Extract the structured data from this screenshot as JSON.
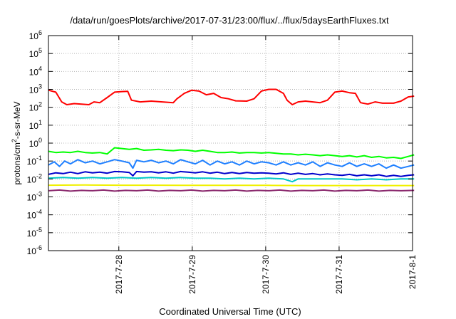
{
  "chart_data": {
    "type": "line",
    "title": "/data/run/goesPlots/archive/2017-07-31/23:00/flux/../flux/5daysEarthFluxes.txt",
    "xlabel": "Coordinated Universal Time (UTC)",
    "ylabel": {
      "base": "protons/cm",
      "sup": "2",
      "rest": "-s-sr-MeV"
    },
    "yscale": "log",
    "ylim": [
      1e-06,
      1000000.0
    ],
    "y_ticks": [
      {
        "exp": -6
      },
      {
        "exp": -5
      },
      {
        "exp": -4
      },
      {
        "exp": -3
      },
      {
        "exp": -2
      },
      {
        "exp": -1
      },
      {
        "exp": 0
      },
      {
        "exp": 1
      },
      {
        "exp": 2
      },
      {
        "exp": 3
      },
      {
        "exp": 4
      },
      {
        "exp": 5
      },
      {
        "exp": 6
      }
    ],
    "y_tick_base": "10",
    "xlim": [
      "2017-07-27 01:00",
      "2017-08-01 00:00"
    ],
    "x_ticks": [
      {
        "label": "2017-7-28",
        "day": 1
      },
      {
        "label": "2017-7-29",
        "day": 2
      },
      {
        "label": "2017-7-30",
        "day": 3
      },
      {
        "label": "2017-7-31",
        "day": 4
      },
      {
        "label": "2017-8-1",
        "day": 5
      }
    ],
    "grid": true,
    "series": [
      {
        "color": "#ff0000",
        "points": [
          [
            0.0,
            900
          ],
          [
            0.1,
            700
          ],
          [
            0.18,
            200
          ],
          [
            0.25,
            140
          ],
          [
            0.35,
            160
          ],
          [
            0.45,
            150
          ],
          [
            0.55,
            140
          ],
          [
            0.62,
            200
          ],
          [
            0.7,
            180
          ],
          [
            0.8,
            350
          ],
          [
            0.9,
            700
          ],
          [
            1.0,
            750
          ],
          [
            1.08,
            780
          ],
          [
            1.13,
            250
          ],
          [
            1.25,
            200
          ],
          [
            1.4,
            220
          ],
          [
            1.55,
            200
          ],
          [
            1.7,
            180
          ],
          [
            1.75,
            300
          ],
          [
            1.85,
            600
          ],
          [
            1.95,
            900
          ],
          [
            2.05,
            800
          ],
          [
            2.15,
            500
          ],
          [
            2.25,
            600
          ],
          [
            2.35,
            350
          ],
          [
            2.45,
            300
          ],
          [
            2.55,
            230
          ],
          [
            2.7,
            220
          ],
          [
            2.8,
            300
          ],
          [
            2.9,
            800
          ],
          [
            3.0,
            1000
          ],
          [
            3.1,
            1000
          ],
          [
            3.2,
            600
          ],
          [
            3.25,
            250
          ],
          [
            3.32,
            140
          ],
          [
            3.4,
            200
          ],
          [
            3.5,
            220
          ],
          [
            3.6,
            200
          ],
          [
            3.7,
            180
          ],
          [
            3.8,
            250
          ],
          [
            3.9,
            700
          ],
          [
            4.0,
            800
          ],
          [
            4.1,
            650
          ],
          [
            4.18,
            600
          ],
          [
            4.25,
            180
          ],
          [
            4.35,
            150
          ],
          [
            4.45,
            200
          ],
          [
            4.55,
            170
          ],
          [
            4.7,
            170
          ],
          [
            4.8,
            220
          ],
          [
            4.9,
            380
          ],
          [
            4.98,
            420
          ]
        ]
      },
      {
        "color": "#00ff00",
        "points": [
          [
            0.0,
            0.35
          ],
          [
            0.1,
            0.3
          ],
          [
            0.2,
            0.32
          ],
          [
            0.3,
            0.3
          ],
          [
            0.4,
            0.35
          ],
          [
            0.5,
            0.3
          ],
          [
            0.6,
            0.28
          ],
          [
            0.7,
            0.3
          ],
          [
            0.8,
            0.25
          ],
          [
            0.9,
            0.55
          ],
          [
            1.0,
            0.5
          ],
          [
            1.1,
            0.45
          ],
          [
            1.2,
            0.5
          ],
          [
            1.3,
            0.4
          ],
          [
            1.4,
            0.42
          ],
          [
            1.5,
            0.45
          ],
          [
            1.6,
            0.4
          ],
          [
            1.7,
            0.38
          ],
          [
            1.8,
            0.42
          ],
          [
            1.9,
            0.4
          ],
          [
            2.0,
            0.35
          ],
          [
            2.1,
            0.4
          ],
          [
            2.2,
            0.35
          ],
          [
            2.3,
            0.3
          ],
          [
            2.4,
            0.3
          ],
          [
            2.5,
            0.32
          ],
          [
            2.6,
            0.28
          ],
          [
            2.7,
            0.3
          ],
          [
            2.8,
            0.3
          ],
          [
            2.9,
            0.28
          ],
          [
            3.0,
            0.3
          ],
          [
            3.1,
            0.27
          ],
          [
            3.2,
            0.25
          ],
          [
            3.3,
            0.25
          ],
          [
            3.4,
            0.22
          ],
          [
            3.5,
            0.24
          ],
          [
            3.6,
            0.22
          ],
          [
            3.7,
            0.2
          ],
          [
            3.8,
            0.22
          ],
          [
            3.9,
            0.2
          ],
          [
            4.0,
            0.18
          ],
          [
            4.1,
            0.2
          ],
          [
            4.2,
            0.17
          ],
          [
            4.3,
            0.2
          ],
          [
            4.4,
            0.16
          ],
          [
            4.5,
            0.18
          ],
          [
            4.6,
            0.15
          ],
          [
            4.7,
            0.16
          ],
          [
            4.8,
            0.14
          ],
          [
            4.9,
            0.18
          ],
          [
            4.98,
            0.22
          ]
        ]
      },
      {
        "color": "#1e7fff",
        "points": [
          [
            0.0,
            0.06
          ],
          [
            0.08,
            0.09
          ],
          [
            0.15,
            0.05
          ],
          [
            0.22,
            0.1
          ],
          [
            0.3,
            0.07
          ],
          [
            0.4,
            0.12
          ],
          [
            0.5,
            0.08
          ],
          [
            0.6,
            0.1
          ],
          [
            0.7,
            0.07
          ],
          [
            0.8,
            0.09
          ],
          [
            0.9,
            0.12
          ],
          [
            1.0,
            0.1
          ],
          [
            1.1,
            0.08
          ],
          [
            1.15,
            0.04
          ],
          [
            1.2,
            0.11
          ],
          [
            1.3,
            0.09
          ],
          [
            1.4,
            0.11
          ],
          [
            1.5,
            0.08
          ],
          [
            1.6,
            0.1
          ],
          [
            1.7,
            0.07
          ],
          [
            1.8,
            0.12
          ],
          [
            1.9,
            0.09
          ],
          [
            2.0,
            0.07
          ],
          [
            2.1,
            0.11
          ],
          [
            2.2,
            0.06
          ],
          [
            2.3,
            0.1
          ],
          [
            2.4,
            0.07
          ],
          [
            2.5,
            0.09
          ],
          [
            2.6,
            0.06
          ],
          [
            2.7,
            0.1
          ],
          [
            2.8,
            0.07
          ],
          [
            2.9,
            0.09
          ],
          [
            3.0,
            0.08
          ],
          [
            3.1,
            0.06
          ],
          [
            3.2,
            0.09
          ],
          [
            3.3,
            0.06
          ],
          [
            3.4,
            0.08
          ],
          [
            3.5,
            0.06
          ],
          [
            3.6,
            0.09
          ],
          [
            3.7,
            0.05
          ],
          [
            3.8,
            0.08
          ],
          [
            3.9,
            0.06
          ],
          [
            4.0,
            0.05
          ],
          [
            4.1,
            0.08
          ],
          [
            4.2,
            0.05
          ],
          [
            4.3,
            0.07
          ],
          [
            4.4,
            0.05
          ],
          [
            4.5,
            0.07
          ],
          [
            4.6,
            0.04
          ],
          [
            4.7,
            0.06
          ],
          [
            4.8,
            0.04
          ],
          [
            4.9,
            0.05
          ],
          [
            4.98,
            0.06
          ]
        ]
      },
      {
        "color": "#0000cc",
        "points": [
          [
            0.0,
            0.018
          ],
          [
            0.1,
            0.022
          ],
          [
            0.2,
            0.02
          ],
          [
            0.3,
            0.024
          ],
          [
            0.4,
            0.02
          ],
          [
            0.5,
            0.025
          ],
          [
            0.6,
            0.022
          ],
          [
            0.7,
            0.024
          ],
          [
            0.8,
            0.021
          ],
          [
            0.9,
            0.026
          ],
          [
            1.0,
            0.025
          ],
          [
            1.1,
            0.023
          ],
          [
            1.15,
            0.015
          ],
          [
            1.2,
            0.026
          ],
          [
            1.3,
            0.024
          ],
          [
            1.4,
            0.025
          ],
          [
            1.5,
            0.022
          ],
          [
            1.6,
            0.025
          ],
          [
            1.7,
            0.021
          ],
          [
            1.8,
            0.026
          ],
          [
            1.9,
            0.024
          ],
          [
            2.0,
            0.022
          ],
          [
            2.1,
            0.025
          ],
          [
            2.2,
            0.021
          ],
          [
            2.3,
            0.024
          ],
          [
            2.4,
            0.02
          ],
          [
            2.5,
            0.023
          ],
          [
            2.6,
            0.02
          ],
          [
            2.7,
            0.023
          ],
          [
            2.8,
            0.021
          ],
          [
            2.9,
            0.022
          ],
          [
            3.0,
            0.021
          ],
          [
            3.1,
            0.019
          ],
          [
            3.2,
            0.022
          ],
          [
            3.3,
            0.018
          ],
          [
            3.4,
            0.021
          ],
          [
            3.5,
            0.018
          ],
          [
            3.6,
            0.02
          ],
          [
            3.7,
            0.017
          ],
          [
            3.8,
            0.019
          ],
          [
            3.9,
            0.017
          ],
          [
            4.0,
            0.016
          ],
          [
            4.1,
            0.018
          ],
          [
            4.2,
            0.015
          ],
          [
            4.3,
            0.017
          ],
          [
            4.4,
            0.015
          ],
          [
            4.5,
            0.017
          ],
          [
            4.6,
            0.014
          ],
          [
            4.7,
            0.016
          ],
          [
            4.8,
            0.014
          ],
          [
            4.9,
            0.016
          ],
          [
            4.98,
            0.017
          ]
        ]
      },
      {
        "color": "#00c8c8",
        "points": [
          [
            0.0,
            0.011
          ],
          [
            0.2,
            0.012
          ],
          [
            0.4,
            0.011
          ],
          [
            0.6,
            0.012
          ],
          [
            0.8,
            0.011
          ],
          [
            1.0,
            0.012
          ],
          [
            1.2,
            0.011
          ],
          [
            1.4,
            0.012
          ],
          [
            1.6,
            0.011
          ],
          [
            1.8,
            0.012
          ],
          [
            2.0,
            0.011
          ],
          [
            2.2,
            0.011
          ],
          [
            2.4,
            0.01
          ],
          [
            2.6,
            0.011
          ],
          [
            2.8,
            0.01
          ],
          [
            3.0,
            0.011
          ],
          [
            3.2,
            0.01
          ],
          [
            3.32,
            0.007
          ],
          [
            3.4,
            0.01
          ],
          [
            3.6,
            0.01
          ],
          [
            3.8,
            0.01
          ],
          [
            4.0,
            0.01
          ],
          [
            4.2,
            0.009
          ],
          [
            4.4,
            0.01
          ],
          [
            4.6,
            0.009
          ],
          [
            4.8,
            0.01
          ],
          [
            4.98,
            0.01
          ]
        ]
      },
      {
        "color": "#f0f000",
        "points": [
          [
            0.0,
            0.0045
          ],
          [
            0.5,
            0.0046
          ],
          [
            1.0,
            0.0045
          ],
          [
            1.5,
            0.0045
          ],
          [
            2.0,
            0.0044
          ],
          [
            2.5,
            0.0044
          ],
          [
            3.0,
            0.0044
          ],
          [
            3.5,
            0.0043
          ],
          [
            4.0,
            0.0043
          ],
          [
            4.5,
            0.0043
          ],
          [
            4.98,
            0.0043
          ]
        ]
      },
      {
        "color": "#8b2a6e",
        "points": [
          [
            0.0,
            0.0022
          ],
          [
            0.15,
            0.0024
          ],
          [
            0.3,
            0.0021
          ],
          [
            0.45,
            0.0023
          ],
          [
            0.6,
            0.0022
          ],
          [
            0.75,
            0.0024
          ],
          [
            0.9,
            0.0021
          ],
          [
            1.05,
            0.0023
          ],
          [
            1.2,
            0.0022
          ],
          [
            1.35,
            0.0024
          ],
          [
            1.5,
            0.0021
          ],
          [
            1.65,
            0.0023
          ],
          [
            1.8,
            0.0022
          ],
          [
            1.95,
            0.0024
          ],
          [
            2.1,
            0.0021
          ],
          [
            2.25,
            0.0023
          ],
          [
            2.4,
            0.0022
          ],
          [
            2.55,
            0.0024
          ],
          [
            2.7,
            0.0021
          ],
          [
            2.85,
            0.0023
          ],
          [
            3.0,
            0.0022
          ],
          [
            3.15,
            0.0024
          ],
          [
            3.3,
            0.0021
          ],
          [
            3.45,
            0.0023
          ],
          [
            3.6,
            0.0022
          ],
          [
            3.75,
            0.0024
          ],
          [
            3.9,
            0.0021
          ],
          [
            4.05,
            0.0023
          ],
          [
            4.2,
            0.0022
          ],
          [
            4.35,
            0.0024
          ],
          [
            4.5,
            0.0021
          ],
          [
            4.65,
            0.0023
          ],
          [
            4.8,
            0.0022
          ],
          [
            4.98,
            0.0023
          ]
        ]
      }
    ]
  }
}
